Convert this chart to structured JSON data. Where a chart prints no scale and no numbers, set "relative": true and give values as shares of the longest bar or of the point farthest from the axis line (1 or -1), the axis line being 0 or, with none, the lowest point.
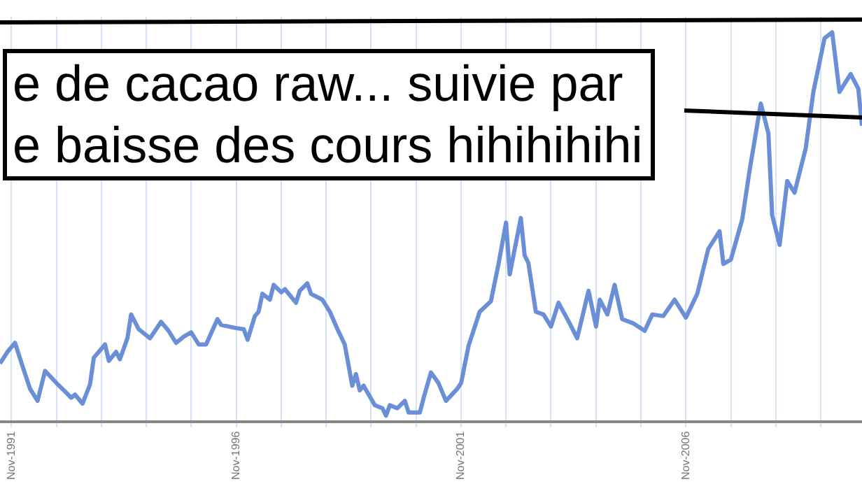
{
  "chart_data": {
    "type": "line",
    "relative": true,
    "grid": "x",
    "marker": "none",
    "color": "#6a8fd6",
    "xlim": [
      "1991-08",
      "2010-10"
    ],
    "xticks": [
      {
        "value": "1991-11",
        "label": "Nov-1991"
      },
      {
        "value": "1992-11",
        "label": null
      },
      {
        "value": "1993-11",
        "label": null
      },
      {
        "value": "1994-11",
        "label": null
      },
      {
        "value": "1995-11",
        "label": null
      },
      {
        "value": "1996-11",
        "label": "Nov-1996"
      },
      {
        "value": "1997-11",
        "label": null
      },
      {
        "value": "1998-11",
        "label": null
      },
      {
        "value": "1999-11",
        "label": null
      },
      {
        "value": "2000-11",
        "label": null
      },
      {
        "value": "2001-11",
        "label": "Nov-2001"
      },
      {
        "value": "2002-11",
        "label": null
      },
      {
        "value": "2003-11",
        "label": null
      },
      {
        "value": "2004-11",
        "label": null
      },
      {
        "value": "2005-11",
        "label": null
      },
      {
        "value": "2006-11",
        "label": "Nov-2006"
      },
      {
        "value": "2007-11",
        "label": null
      },
      {
        "value": "2008-11",
        "label": null
      },
      {
        "value": "2009-11",
        "label": null
      }
    ],
    "x": [
      "1991-08",
      "1991-10",
      "1991-12",
      "1992-02",
      "1992-04",
      "1992-06",
      "1992-08",
      "1992-11",
      "1993-01",
      "1993-03",
      "1993-04",
      "1993-06",
      "1993-08",
      "1993-09",
      "1993-12",
      "1994-01",
      "1994-03",
      "1994-04",
      "1994-06",
      "1994-07",
      "1994-09",
      "1994-12",
      "1995-03",
      "1995-05",
      "1995-07",
      "1995-09",
      "1995-11",
      "1996-01",
      "1996-03",
      "1996-06",
      "1996-07",
      "1996-11",
      "1997-01",
      "1997-02",
      "1997-04",
      "1997-05",
      "1997-06",
      "1997-08",
      "1997-09",
      "1997-11",
      "1997-12",
      "1998-03",
      "1998-04",
      "1998-06",
      "1998-07",
      "1998-10",
      "1998-12",
      "1999-02",
      "1999-04",
      "1999-06",
      "1999-07",
      "1999-08",
      "1999-09",
      "1999-12",
      "2000-02",
      "2000-03",
      "2000-04",
      "2000-06",
      "2000-08",
      "2000-09",
      "2000-12",
      "2001-01",
      "2001-03",
      "2001-05",
      "2001-07",
      "2001-10",
      "2001-11",
      "2002-01",
      "2002-04",
      "2002-07",
      "2002-09",
      "2002-11",
      "2002-12",
      "2003-03",
      "2003-04",
      "2003-05",
      "2003-07",
      "2003-09",
      "2003-11",
      "2004-01",
      "2004-04",
      "2004-06",
      "2004-09",
      "2004-11",
      "2004-12",
      "2005-02",
      "2005-04",
      "2005-06",
      "2005-09",
      "2005-12",
      "2006-02",
      "2006-05",
      "2006-08",
      "2006-11",
      "2007-02",
      "2007-05",
      "2007-08",
      "2007-09",
      "2007-11",
      "2008-02",
      "2008-04",
      "2008-07",
      "2008-09",
      "2008-10",
      "2008-12",
      "2009-02",
      "2009-04",
      "2009-07",
      "2009-09",
      "2009-12",
      "2010-02",
      "2010-04",
      "2010-07",
      "2010-09",
      "2010-10"
    ],
    "values": [
      0.149,
      0.179,
      0.202,
      0.141,
      0.084,
      0.053,
      0.13,
      0.099,
      0.08,
      0.061,
      0.069,
      0.046,
      0.095,
      0.164,
      0.198,
      0.156,
      0.179,
      0.16,
      0.214,
      0.275,
      0.237,
      0.214,
      0.256,
      0.233,
      0.202,
      0.218,
      0.229,
      0.198,
      0.198,
      0.263,
      0.248,
      0.24,
      0.237,
      0.21,
      0.271,
      0.282,
      0.328,
      0.313,
      0.351,
      0.332,
      0.34,
      0.305,
      0.336,
      0.355,
      0.328,
      0.313,
      0.282,
      0.237,
      0.198,
      0.092,
      0.122,
      0.08,
      0.092,
      0.042,
      0.034,
      0.015,
      0.042,
      0.034,
      0.053,
      0.023,
      0.023,
      0.061,
      0.126,
      0.099,
      0.053,
      0.084,
      0.099,
      0.195,
      0.282,
      0.309,
      0.405,
      0.511,
      0.378,
      0.523,
      0.427,
      0.408,
      0.282,
      0.275,
      0.244,
      0.305,
      0.252,
      0.214,
      0.336,
      0.244,
      0.313,
      0.275,
      0.351,
      0.263,
      0.252,
      0.233,
      0.275,
      0.271,
      0.313,
      0.267,
      0.328,
      0.443,
      0.489,
      0.405,
      0.416,
      0.519,
      0.645,
      0.817,
      0.74,
      0.531,
      0.454,
      0.618,
      0.588,
      0.702,
      0.847,
      0.985,
      1,
      0.847,
      0.893,
      0.855,
      0.76
    ],
    "annotations": [
      "e de cacao raw... suivie par\ne baisse des cours hihihihihi"
    ]
  }
}
